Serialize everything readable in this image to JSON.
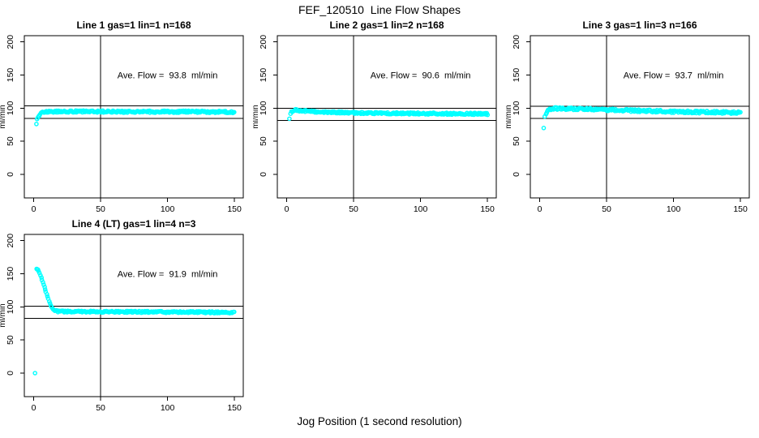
{
  "page_title": "FEF_120510  Line Flow Shapes",
  "x_axis_label": "Jog Position (1 second resolution)",
  "colors": {
    "marker": "#00FFFF",
    "axis": "#000000",
    "background": "#FFFFFF"
  },
  "chart_data": [
    {
      "type": "scatter",
      "title": "Line 1 gas=1 lin=1 n=168",
      "n": 168,
      "ave_flow": 93.8,
      "annotation": "Ave. Flow =  93.8  ml/min",
      "ylabel": "ml/min",
      "xlim": [
        -7,
        156.6
      ],
      "ylim": [
        -35.5,
        209.4
      ],
      "x_ticks": [
        0,
        50,
        100,
        150
      ],
      "y_ticks": [
        0,
        50,
        100,
        150,
        200
      ],
      "vline_x": 50,
      "ref_lines": [
        103.2,
        84.4
      ],
      "annotation_xy": [
        100,
        150
      ],
      "marker": "open-circle",
      "band_halfwidth": 1.5,
      "outliers": [
        [
          2,
          76
        ],
        [
          2.5,
          83.5
        ]
      ],
      "series_profile": [
        [
          3,
          85
        ],
        [
          3.5,
          87
        ],
        [
          4,
          89
        ],
        [
          5,
          91.5
        ],
        [
          6,
          93
        ],
        [
          8,
          94.3
        ],
        [
          12,
          94.8
        ],
        [
          20,
          95
        ],
        [
          50,
          94.8
        ],
        [
          90,
          94.6
        ],
        [
          120,
          94.6
        ],
        [
          150,
          94.2
        ]
      ]
    },
    {
      "type": "scatter",
      "title": "Line 2 gas=1 lin=2 n=168",
      "n": 168,
      "ave_flow": 90.6,
      "annotation": "Ave. Flow =  90.6  ml/min",
      "ylabel": "ml/min",
      "xlim": [
        -7,
        156.6
      ],
      "ylim": [
        -35.5,
        209.4
      ],
      "x_ticks": [
        0,
        50,
        100,
        150
      ],
      "y_ticks": [
        0,
        50,
        100,
        150,
        200
      ],
      "vline_x": 50,
      "ref_lines": [
        99.7,
        81.5
      ],
      "annotation_xy": [
        100,
        150
      ],
      "marker": "open-circle",
      "band_halfwidth": 1.4,
      "outliers": [
        [
          2,
          84
        ]
      ],
      "series_profile": [
        [
          3,
          92
        ],
        [
          4,
          95
        ],
        [
          5,
          96.5
        ],
        [
          7,
          97
        ],
        [
          12,
          96
        ],
        [
          20,
          94.8
        ],
        [
          35,
          93.6
        ],
        [
          55,
          92.8
        ],
        [
          80,
          92.2
        ],
        [
          110,
          91.8
        ],
        [
          150,
          91.2
        ]
      ]
    },
    {
      "type": "scatter",
      "title": "Line 3 gas=1 lin=3 n=166",
      "n": 166,
      "ave_flow": 93.7,
      "annotation": "Ave. Flow =  93.7  ml/min",
      "ylabel": "ml/min",
      "xlim": [
        -7,
        156.6
      ],
      "ylim": [
        -35.5,
        209.4
      ],
      "x_ticks": [
        0,
        50,
        100,
        150
      ],
      "y_ticks": [
        0,
        50,
        100,
        150,
        200
      ],
      "vline_x": 50,
      "ref_lines": [
        103.1,
        84.3
      ],
      "annotation_xy": [
        100,
        150
      ],
      "marker": "open-circle",
      "band_halfwidth": 1.8,
      "outliers": [
        [
          3,
          70
        ]
      ],
      "series_profile": [
        [
          4,
          88
        ],
        [
          4.5,
          91
        ],
        [
          5,
          93.5
        ],
        [
          6,
          96
        ],
        [
          8,
          98.3
        ],
        [
          11,
          99.4
        ],
        [
          25,
          99.2
        ],
        [
          45,
          98
        ],
        [
          70,
          96.3
        ],
        [
          95,
          95
        ],
        [
          120,
          94
        ],
        [
          150,
          93.3
        ]
      ]
    },
    {
      "type": "scatter",
      "title": "Line 4 (LT) gas=1 lin=4 n=3",
      "n": 3,
      "ave_flow": 91.9,
      "annotation": "Ave. Flow =  91.9  ml/min",
      "ylabel": "ml/min",
      "xlim": [
        -7,
        156.6
      ],
      "ylim": [
        -35.5,
        209.4
      ],
      "x_ticks": [
        0,
        50,
        100,
        150
      ],
      "y_ticks": [
        0,
        50,
        100,
        150,
        200
      ],
      "vline_x": 50,
      "ref_lines": [
        101.1,
        82.7
      ],
      "annotation_xy": [
        100,
        150
      ],
      "marker": "open-circle",
      "band_halfwidth": 1.3,
      "head": {
        "until_x": 16.5,
        "halfwidth": 0.5
      },
      "outliers": [
        [
          1,
          0
        ]
      ],
      "series_profile": [
        [
          2,
          157
        ],
        [
          3,
          157.5
        ],
        [
          4,
          153
        ],
        [
          5,
          148
        ],
        [
          6,
          142
        ],
        [
          7,
          136
        ],
        [
          8,
          130
        ],
        [
          9,
          124
        ],
        [
          10,
          118
        ],
        [
          11,
          112
        ],
        [
          12,
          106
        ],
        [
          13,
          101
        ],
        [
          14,
          97.5
        ],
        [
          15,
          95.3
        ],
        [
          16,
          94.2
        ],
        [
          18,
          93.4
        ],
        [
          22,
          93
        ],
        [
          40,
          92.9
        ],
        [
          70,
          92.6
        ],
        [
          100,
          92.3
        ],
        [
          130,
          91.8
        ],
        [
          150,
          91.4
        ]
      ]
    }
  ]
}
